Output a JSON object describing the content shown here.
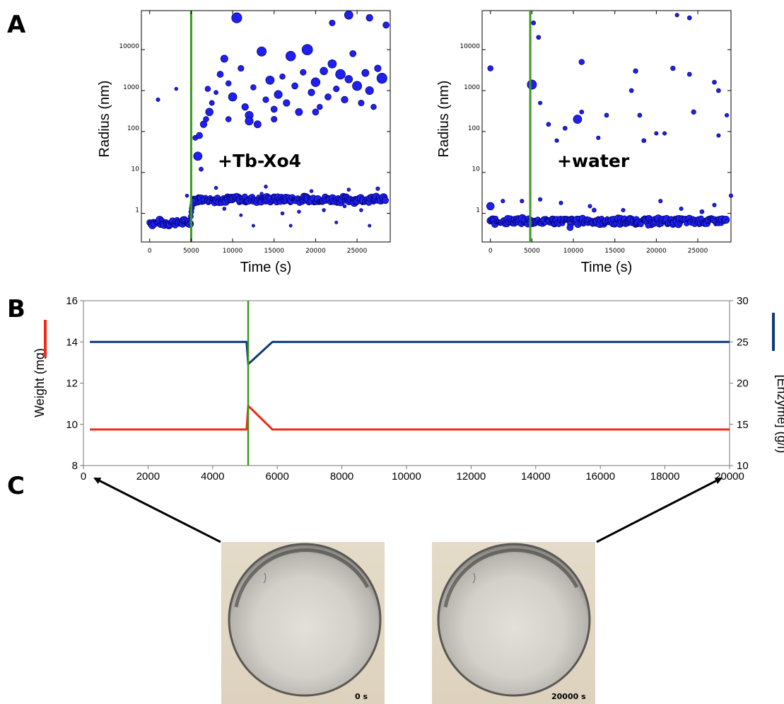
{
  "panel_labels": {
    "a": "A",
    "b": "B",
    "c": "C"
  },
  "colors": {
    "marker_fill": "#1f1ff0",
    "marker_edge": "#000066",
    "event_line": "#3a9a1a",
    "weight_line": "#ee2a1a",
    "enzyme_line": "#0d3a78"
  },
  "chart_data": [
    {
      "type": "scatter",
      "id": "A-left",
      "annotation": "+Tb-Xo4",
      "xlabel": "Time (s)",
      "ylabel": "Radius (nm)",
      "xlim": [
        -1000,
        29000
      ],
      "ylim": [
        0.2,
        90000
      ],
      "yscale": "log",
      "xticks": [
        0,
        5000,
        10000,
        15000,
        20000,
        25000
      ],
      "yticks": [
        1,
        10,
        100,
        1000,
        10000
      ],
      "ytick_labels": [
        "1",
        "10",
        "100",
        "1000",
        "10000"
      ],
      "event_time": 5000,
      "baseline_before": {
        "t_start": 0,
        "t_end": 4900,
        "radius": 0.6
      },
      "baseline_after": {
        "t_start": 5200,
        "t_end": 28500,
        "radius": 2.2
      },
      "points": [
        [
          1000,
          600,
          0.9
        ],
        [
          3200,
          1100,
          0.8
        ],
        [
          5500,
          70,
          1.2
        ],
        [
          6000,
          80,
          1.5
        ],
        [
          5800,
          25,
          2.0
        ],
        [
          6500,
          150,
          1.6
        ],
        [
          6800,
          200,
          1.3
        ],
        [
          7200,
          300,
          1.8
        ],
        [
          7500,
          500,
          1.2
        ],
        [
          8000,
          900,
          1.0
        ],
        [
          8500,
          2500,
          1.5
        ],
        [
          9000,
          6000,
          1.7
        ],
        [
          9500,
          1500,
          1.3
        ],
        [
          10000,
          700,
          2.0
        ],
        [
          10500,
          60000,
          2.4
        ],
        [
          11000,
          3500,
          1.4
        ],
        [
          11500,
          400,
          1.6
        ],
        [
          12000,
          250,
          1.9
        ],
        [
          12500,
          1200,
          1.3
        ],
        [
          13000,
          150,
          1.7
        ],
        [
          13500,
          9000,
          2.2
        ],
        [
          14000,
          600,
          1.4
        ],
        [
          14500,
          1800,
          2.0
        ],
        [
          15000,
          350,
          1.5
        ],
        [
          15500,
          800,
          1.9
        ],
        [
          16000,
          2200,
          1.3
        ],
        [
          16500,
          500,
          1.6
        ],
        [
          17000,
          7000,
          2.3
        ],
        [
          17500,
          1300,
          1.5
        ],
        [
          18000,
          300,
          1.7
        ],
        [
          18500,
          2800,
          1.4
        ],
        [
          19000,
          10000,
          2.5
        ],
        [
          19500,
          900,
          1.6
        ],
        [
          20000,
          1600,
          2.1
        ],
        [
          20500,
          400,
          1.3
        ],
        [
          21000,
          3000,
          1.8
        ],
        [
          21500,
          700,
          1.5
        ],
        [
          22000,
          4500,
          2.0
        ],
        [
          22500,
          1100,
          1.4
        ],
        [
          23000,
          2500,
          2.3
        ],
        [
          23500,
          600,
          1.6
        ],
        [
          24000,
          1900,
          1.8
        ],
        [
          24500,
          8000,
          1.5
        ],
        [
          25000,
          1300,
          2.2
        ],
        [
          25500,
          500,
          1.4
        ],
        [
          26000,
          2700,
          1.7
        ],
        [
          26500,
          1000,
          1.9
        ],
        [
          27000,
          400,
          1.3
        ],
        [
          27500,
          3500,
          1.6
        ],
        [
          28000,
          2000,
          2.4
        ],
        [
          28500,
          40000,
          1.5
        ],
        [
          26500,
          60000,
          1.6
        ],
        [
          24000,
          70000,
          2.0
        ],
        [
          22000,
          45000,
          1.4
        ],
        [
          9500,
          200,
          1.3
        ],
        [
          12000,
          180,
          1.9
        ],
        [
          15000,
          200,
          1.4
        ],
        [
          20000,
          300,
          1.5
        ],
        [
          7000,
          1100,
          1.3
        ],
        [
          6200,
          12,
          1.0
        ],
        [
          9000,
          1.3,
          0.8
        ],
        [
          12500,
          0.5,
          0.7
        ],
        [
          16000,
          1.0,
          0.8
        ],
        [
          19500,
          3.5,
          0.8
        ],
        [
          22500,
          0.6,
          0.7
        ],
        [
          25500,
          1.2,
          0.8
        ],
        [
          27500,
          4.0,
          0.9
        ],
        [
          14000,
          4.5,
          0.8
        ],
        [
          11000,
          0.9,
          0.7
        ],
        [
          18000,
          1.1,
          0.8
        ],
        [
          24000,
          3.8,
          0.8
        ],
        [
          8000,
          4.2,
          0.8
        ],
        [
          21000,
          1.2,
          0.8
        ],
        [
          26500,
          0.5,
          0.7
        ],
        [
          10500,
          2.8,
          0.9
        ],
        [
          17000,
          0.5,
          0.7
        ],
        [
          13500,
          3.0,
          0.8
        ],
        [
          4500,
          2.7,
          0.8
        ],
        [
          23500,
          1.5,
          0.8
        ]
      ]
    },
    {
      "type": "scatter",
      "id": "A-right",
      "annotation": "+water",
      "xlabel": "Time (s)",
      "ylabel": "Radius (nm)",
      "xlim": [
        -1000,
        29000
      ],
      "ylim": [
        0.2,
        90000
      ],
      "yscale": "log",
      "xticks": [
        0,
        5000,
        10000,
        15000,
        20000,
        25000
      ],
      "yticks": [
        1,
        10,
        100,
        1000,
        10000
      ],
      "ytick_labels": [
        "1",
        "10",
        "100",
        "1000",
        "10000"
      ],
      "event_time": 4800,
      "baseline": {
        "t_start": 0,
        "t_end": 28500,
        "radius": 0.65
      },
      "points": [
        [
          0,
          3500,
          1.3
        ],
        [
          0,
          1.5,
          1.8
        ],
        [
          5000,
          1400,
          2.2
        ],
        [
          5200,
          45000,
          1.0
        ],
        [
          5800,
          20000,
          1.0
        ],
        [
          6000,
          500,
          0.9
        ],
        [
          7000,
          150,
          1.0
        ],
        [
          8000,
          60,
          0.9
        ],
        [
          9000,
          120,
          1.0
        ],
        [
          10500,
          200,
          2.0
        ],
        [
          11000,
          5000,
          1.3
        ],
        [
          11000,
          300,
          1.0
        ],
        [
          13000,
          70,
          0.9
        ],
        [
          14000,
          250,
          1.0
        ],
        [
          17000,
          1000,
          1.0
        ],
        [
          17500,
          3000,
          1.1
        ],
        [
          18000,
          250,
          1.0
        ],
        [
          18500,
          60,
          1.0
        ],
        [
          20000,
          90,
          0.9
        ],
        [
          21000,
          90,
          0.9
        ],
        [
          22000,
          3500,
          1.1
        ],
        [
          22500,
          70000,
          0.9
        ],
        [
          24000,
          60000,
          1.0
        ],
        [
          24000,
          2500,
          1.0
        ],
        [
          24500,
          300,
          1.1
        ],
        [
          27000,
          1600,
          1.0
        ],
        [
          27500,
          1000,
          1.0
        ],
        [
          27500,
          80,
          0.9
        ],
        [
          28500,
          250,
          0.9
        ],
        [
          17500,
          95000,
          0.9
        ],
        [
          1500,
          2.0,
          0.9
        ],
        [
          3800,
          2.0,
          0.9
        ],
        [
          6000,
          2.2,
          0.9
        ],
        [
          8500,
          1.8,
          0.9
        ],
        [
          12000,
          1.5,
          0.9
        ],
        [
          16000,
          1.2,
          0.9
        ],
        [
          20500,
          2.0,
          0.9
        ],
        [
          23000,
          1.3,
          0.9
        ],
        [
          27000,
          1.6,
          0.9
        ],
        [
          29000,
          2.7,
          0.9
        ],
        [
          4800,
          0.6,
          1.4
        ],
        [
          9600,
          0.45,
          1.5
        ],
        [
          12500,
          1.2,
          1.0
        ],
        [
          19000,
          0.5,
          1.2
        ],
        [
          25500,
          1.1,
          1.0
        ]
      ]
    },
    {
      "type": "line",
      "id": "B",
      "xlabel": "",
      "ylabel_left": "Weight (mg)",
      "ylabel_right": "[Enzyme] (g/l)",
      "xlim": [
        0,
        20000
      ],
      "ylim_left": [
        8,
        16
      ],
      "ylim_right": [
        10,
        30
      ],
      "xticks": [
        0,
        2000,
        4000,
        6000,
        8000,
        10000,
        12000,
        14000,
        16000,
        18000,
        20000
      ],
      "yticks_left": [
        8,
        10,
        12,
        14,
        16
      ],
      "yticks_right": [
        10,
        15,
        20,
        25,
        30
      ],
      "event_time": 5100,
      "series": [
        {
          "axis": "left",
          "color": "#ee2a1a",
          "x": [
            200,
            5050,
            5100,
            5850,
            20000
          ],
          "y": [
            9.75,
            9.75,
            10.9,
            9.75,
            9.75
          ]
        },
        {
          "axis": "right",
          "color": "#0d3a78",
          "x": [
            200,
            5050,
            5100,
            5850,
            20000
          ],
          "y": [
            25,
            25,
            22.3,
            25,
            25
          ]
        }
      ]
    }
  ],
  "photos": [
    {
      "label": "0 s"
    },
    {
      "label": "20000 s"
    }
  ]
}
